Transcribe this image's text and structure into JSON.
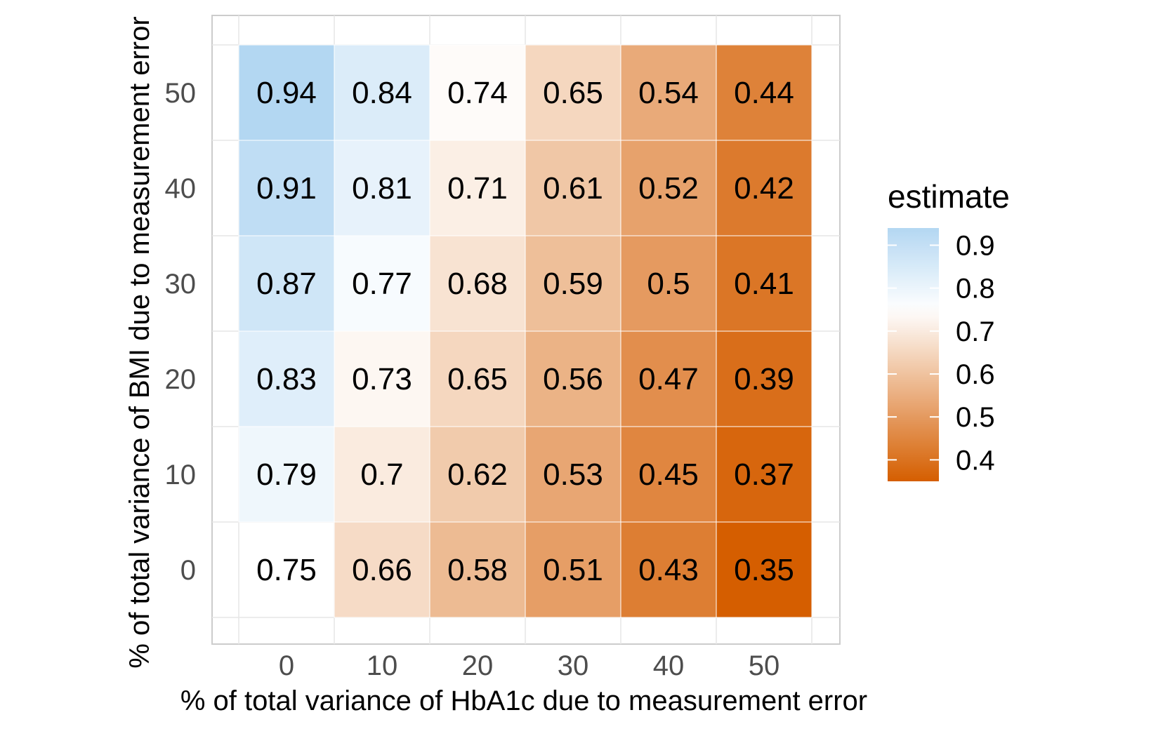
{
  "chart_data": {
    "type": "heatmap",
    "title": "",
    "xlabel": "% of total variance of HbA1c due to measurement error",
    "ylabel": "% of total variance of BMI due to measurement error",
    "x_categories": [
      "0",
      "10",
      "20",
      "30",
      "40",
      "50"
    ],
    "y_categories": [
      "0",
      "10",
      "20",
      "30",
      "40",
      "50"
    ],
    "cells": [
      {
        "x": "10",
        "y": "0",
        "value": 0.66
      },
      {
        "x": "20",
        "y": "0",
        "value": 0.58
      },
      {
        "x": "30",
        "y": "0",
        "value": 0.51
      },
      {
        "x": "40",
        "y": "0",
        "value": 0.43
      },
      {
        "x": "50",
        "y": "0",
        "value": 0.35
      },
      {
        "x": "0",
        "y": "10",
        "value": 0.79
      },
      {
        "x": "10",
        "y": "10",
        "value": 0.7
      },
      {
        "x": "20",
        "y": "10",
        "value": 0.62
      },
      {
        "x": "30",
        "y": "10",
        "value": 0.53
      },
      {
        "x": "40",
        "y": "10",
        "value": 0.45
      },
      {
        "x": "50",
        "y": "10",
        "value": 0.37
      },
      {
        "x": "0",
        "y": "20",
        "value": 0.83
      },
      {
        "x": "10",
        "y": "20",
        "value": 0.73
      },
      {
        "x": "20",
        "y": "20",
        "value": 0.65
      },
      {
        "x": "30",
        "y": "20",
        "value": 0.56
      },
      {
        "x": "40",
        "y": "20",
        "value": 0.47
      },
      {
        "x": "50",
        "y": "20",
        "value": 0.39
      },
      {
        "x": "0",
        "y": "30",
        "value": 0.87
      },
      {
        "x": "10",
        "y": "30",
        "value": 0.77
      },
      {
        "x": "20",
        "y": "30",
        "value": 0.68
      },
      {
        "x": "30",
        "y": "30",
        "value": 0.59
      },
      {
        "x": "40",
        "y": "30",
        "value": 0.5
      },
      {
        "x": "50",
        "y": "30",
        "value": 0.41
      },
      {
        "x": "0",
        "y": "40",
        "value": 0.91
      },
      {
        "x": "10",
        "y": "40",
        "value": 0.81
      },
      {
        "x": "20",
        "y": "40",
        "value": 0.71
      },
      {
        "x": "30",
        "y": "40",
        "value": 0.61
      },
      {
        "x": "40",
        "y": "40",
        "value": 0.52
      },
      {
        "x": "50",
        "y": "40",
        "value": 0.42
      },
      {
        "x": "0",
        "y": "50",
        "value": 0.94
      },
      {
        "x": "10",
        "y": "50",
        "value": 0.84
      },
      {
        "x": "20",
        "y": "50",
        "value": 0.74
      },
      {
        "x": "30",
        "y": "50",
        "value": 0.65
      },
      {
        "x": "40",
        "y": "50",
        "value": 0.54
      },
      {
        "x": "50",
        "y": "50",
        "value": 0.44
      }
    ],
    "unlabeled_cells": [
      {
        "x": "0",
        "y": "0",
        "value": 0.75,
        "label": "0.75"
      }
    ],
    "legend": {
      "title": "estimate",
      "position": "right",
      "breaks": [
        "0.9",
        "0.8",
        "0.7",
        "0.6",
        "0.5",
        "0.4"
      ],
      "limits": [
        0.35,
        0.94
      ]
    },
    "colors": {
      "low": "#d55e00",
      "mid": "#ffffff",
      "high": "#b3d7f2",
      "midpoint": 0.75,
      "gridline": "#e6e6e6",
      "panel_border": "#cccccc",
      "tick_text": "#4d4d4d"
    },
    "grid": true
  }
}
